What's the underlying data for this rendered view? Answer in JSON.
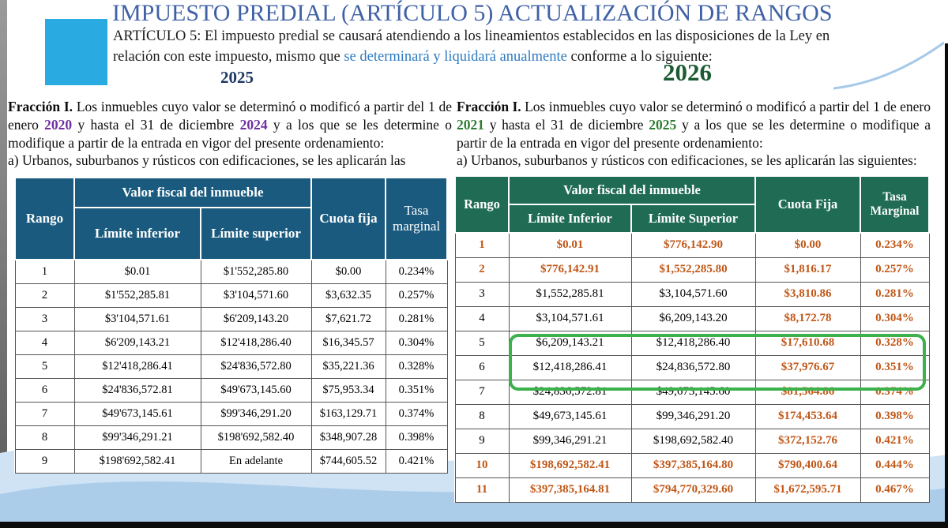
{
  "page": {
    "title": "IMPUESTO PREDIAL (ARTÍCULO 5) ACTUALIZACIÓN DE RANGOS",
    "intro": {
      "part1": "ARTÍCULO 5: El impuesto predial se causará atendiendo a los lineamientos establecidos en las disposiciones de la Ley en relación con este impuesto, mismo que ",
      "highlight": "se determinará y liquidará anualmente",
      "part2": " conforme a lo siguiente:"
    },
    "year_left": "2025",
    "year_right": "2026"
  },
  "colors": {
    "title_blue": "#3f61a5",
    "accent_cyan": "#29abe2",
    "intro_highlight_blue": "#2f7bc1",
    "left_table_header_bg": "#1a5a7e",
    "right_table_header_bg": "#1f6b53",
    "orange_text": "#c05717",
    "left_years_purple": "#7030a0",
    "right_years_green": "#2e7d32",
    "highlight_box_green": "#3cb14c",
    "wave_light_blue": "#cfe3f4",
    "wave_medium_blue": "#a6c9e8"
  },
  "left_panel": {
    "fraccion_label": "Fracción I.",
    "seg1": " Los inmuebles cuyo valor se determinó o modificó a partir  del 1 de enero ",
    "year_start": "2020",
    "seg2": " y hasta el 31 de diciembre ",
    "year_end": "2024",
    "seg3": " y a los que se les determine o modifique a partir de la entrada en vigor del presente ordenamiento:",
    "line_a": "a) Urbanos, suburbanos y rústicos con edificaciones, se les aplicarán las",
    "table": {
      "headers": {
        "rango": "Rango",
        "valor": "Valor fiscal del inmueble",
        "inf": "Límite inferior",
        "sup": "Límite superior",
        "cuota": "Cuota fija",
        "tasa": "Tasa marginal"
      },
      "rows": [
        {
          "rango": "1",
          "inf": "$0.01",
          "sup": "$1'552,285.80",
          "cuota": "$0.00",
          "tasa": "0.234%"
        },
        {
          "rango": "2",
          "inf": "$1'552,285.81",
          "sup": "$3'104,571.60",
          "cuota": "$3,632.35",
          "tasa": "0.257%"
        },
        {
          "rango": "3",
          "inf": "$3'104,571.61",
          "sup": "$6'209,143.20",
          "cuota": "$7,621.72",
          "tasa": "0.281%"
        },
        {
          "rango": "4",
          "inf": "$6'209,143.21",
          "sup": "$12'418,286.40",
          "cuota": "$16,345.57",
          "tasa": "0.304%"
        },
        {
          "rango": "5",
          "inf": "$12'418,286.41",
          "sup": "$24'836,572.80",
          "cuota": "$35,221.36",
          "tasa": "0.328%"
        },
        {
          "rango": "6",
          "inf": "$24'836,572.81",
          "sup": "$49'673,145.60",
          "cuota": "$75,953.34",
          "tasa": "0.351%"
        },
        {
          "rango": "7",
          "inf": "$49'673,145.61",
          "sup": "$99'346,291.20",
          "cuota": "$163,129.71",
          "tasa": "0.374%"
        },
        {
          "rango": "8",
          "inf": "$99'346,291.21",
          "sup": "$198'692,582.40",
          "cuota": "$348,907.28",
          "tasa": "0.398%"
        },
        {
          "rango": "9",
          "inf": "$198'692,582.41",
          "sup": "En adelante",
          "cuota": "$744,605.52",
          "tasa": "0.421%"
        }
      ]
    }
  },
  "right_panel": {
    "fraccion_label": "Fracción I.",
    "seg1": " Los inmuebles cuyo valor se determinó o modificó a partir  del 1 de enero ",
    "year_start": "2021",
    "seg2": " y hasta el 31 de diciembre ",
    "year_end": "2025",
    "seg3": " y a los que se les determine o modifique a partir de la entrada en vigor del presente ordenamiento:",
    "line_a": "a) Urbanos, suburbanos y rústicos con edificaciones, se les aplicarán las siguientes:",
    "table": {
      "headers": {
        "rango": "Rango",
        "valor": "Valor fiscal del inmueble",
        "inf": "Límite Inferior",
        "sup": "Límite Superior",
        "cuota": "Cuota Fija",
        "tasa": "Tasa Marginal"
      },
      "highlighted_rows": [
        5,
        6
      ],
      "rows": [
        {
          "rango": "1",
          "inf": "$0.01",
          "sup": "$776,142.90",
          "cuota": "$0.00",
          "tasa": "0.234%",
          "colors": [
            "o",
            "o",
            "o",
            "o",
            "o"
          ]
        },
        {
          "rango": "2",
          "inf": "$776,142.91",
          "sup": "$1,552,285.80",
          "cuota": "$1,816.17",
          "tasa": "0.257%",
          "colors": [
            "o",
            "o",
            "o",
            "o",
            "o"
          ]
        },
        {
          "rango": "3",
          "inf": "$1,552,285.81",
          "sup": "$3,104,571.60",
          "cuota": "$3,810.86",
          "tasa": "0.281%",
          "colors": [
            "k",
            "k",
            "k",
            "o",
            "o"
          ]
        },
        {
          "rango": "4",
          "inf": "$3,104,571.61",
          "sup": "$6,209,143.20",
          "cuota": "$8,172.78",
          "tasa": "0.304%",
          "colors": [
            "k",
            "k",
            "k",
            "o",
            "o"
          ]
        },
        {
          "rango": "5",
          "inf": "$6,209,143.21",
          "sup": "$12,418,286.40",
          "cuota": "$17,610.68",
          "tasa": "0.328%",
          "colors": [
            "k",
            "k",
            "k",
            "o",
            "o"
          ]
        },
        {
          "rango": "6",
          "inf": "$12,418,286.41",
          "sup": "$24,836,572.80",
          "cuota": "$37,976.67",
          "tasa": "0.351%",
          "colors": [
            "k",
            "k",
            "k",
            "o",
            "o"
          ]
        },
        {
          "rango": "7",
          "inf": "$24,836,572.81",
          "sup": "$49,673,145.60",
          "cuota": "$81,564.86",
          "tasa": "0.374%",
          "colors": [
            "k",
            "k",
            "k",
            "o",
            "o"
          ]
        },
        {
          "rango": "8",
          "inf": "$49,673,145.61",
          "sup": "$99,346,291.20",
          "cuota": "$174,453.64",
          "tasa": "0.398%",
          "colors": [
            "k",
            "k",
            "k",
            "o",
            "o"
          ]
        },
        {
          "rango": "9",
          "inf": "$99,346,291.21",
          "sup": "$198,692,582.40",
          "cuota": "$372,152.76",
          "tasa": "0.421%",
          "colors": [
            "k",
            "k",
            "k",
            "o",
            "o"
          ]
        },
        {
          "rango": "10",
          "inf": "$198,692,582.41",
          "sup": "$397,385,164.80",
          "cuota": "$790,400.64",
          "tasa": "0.444%",
          "colors": [
            "o",
            "o",
            "o",
            "o",
            "o"
          ]
        },
        {
          "rango": "11",
          "inf": "$397,385,164.81",
          "sup": "$794,770,329.60",
          "cuota": "$1,672,595.71",
          "tasa": "0.467%",
          "colors": [
            "o",
            "o",
            "o",
            "o",
            "o"
          ]
        }
      ]
    }
  }
}
